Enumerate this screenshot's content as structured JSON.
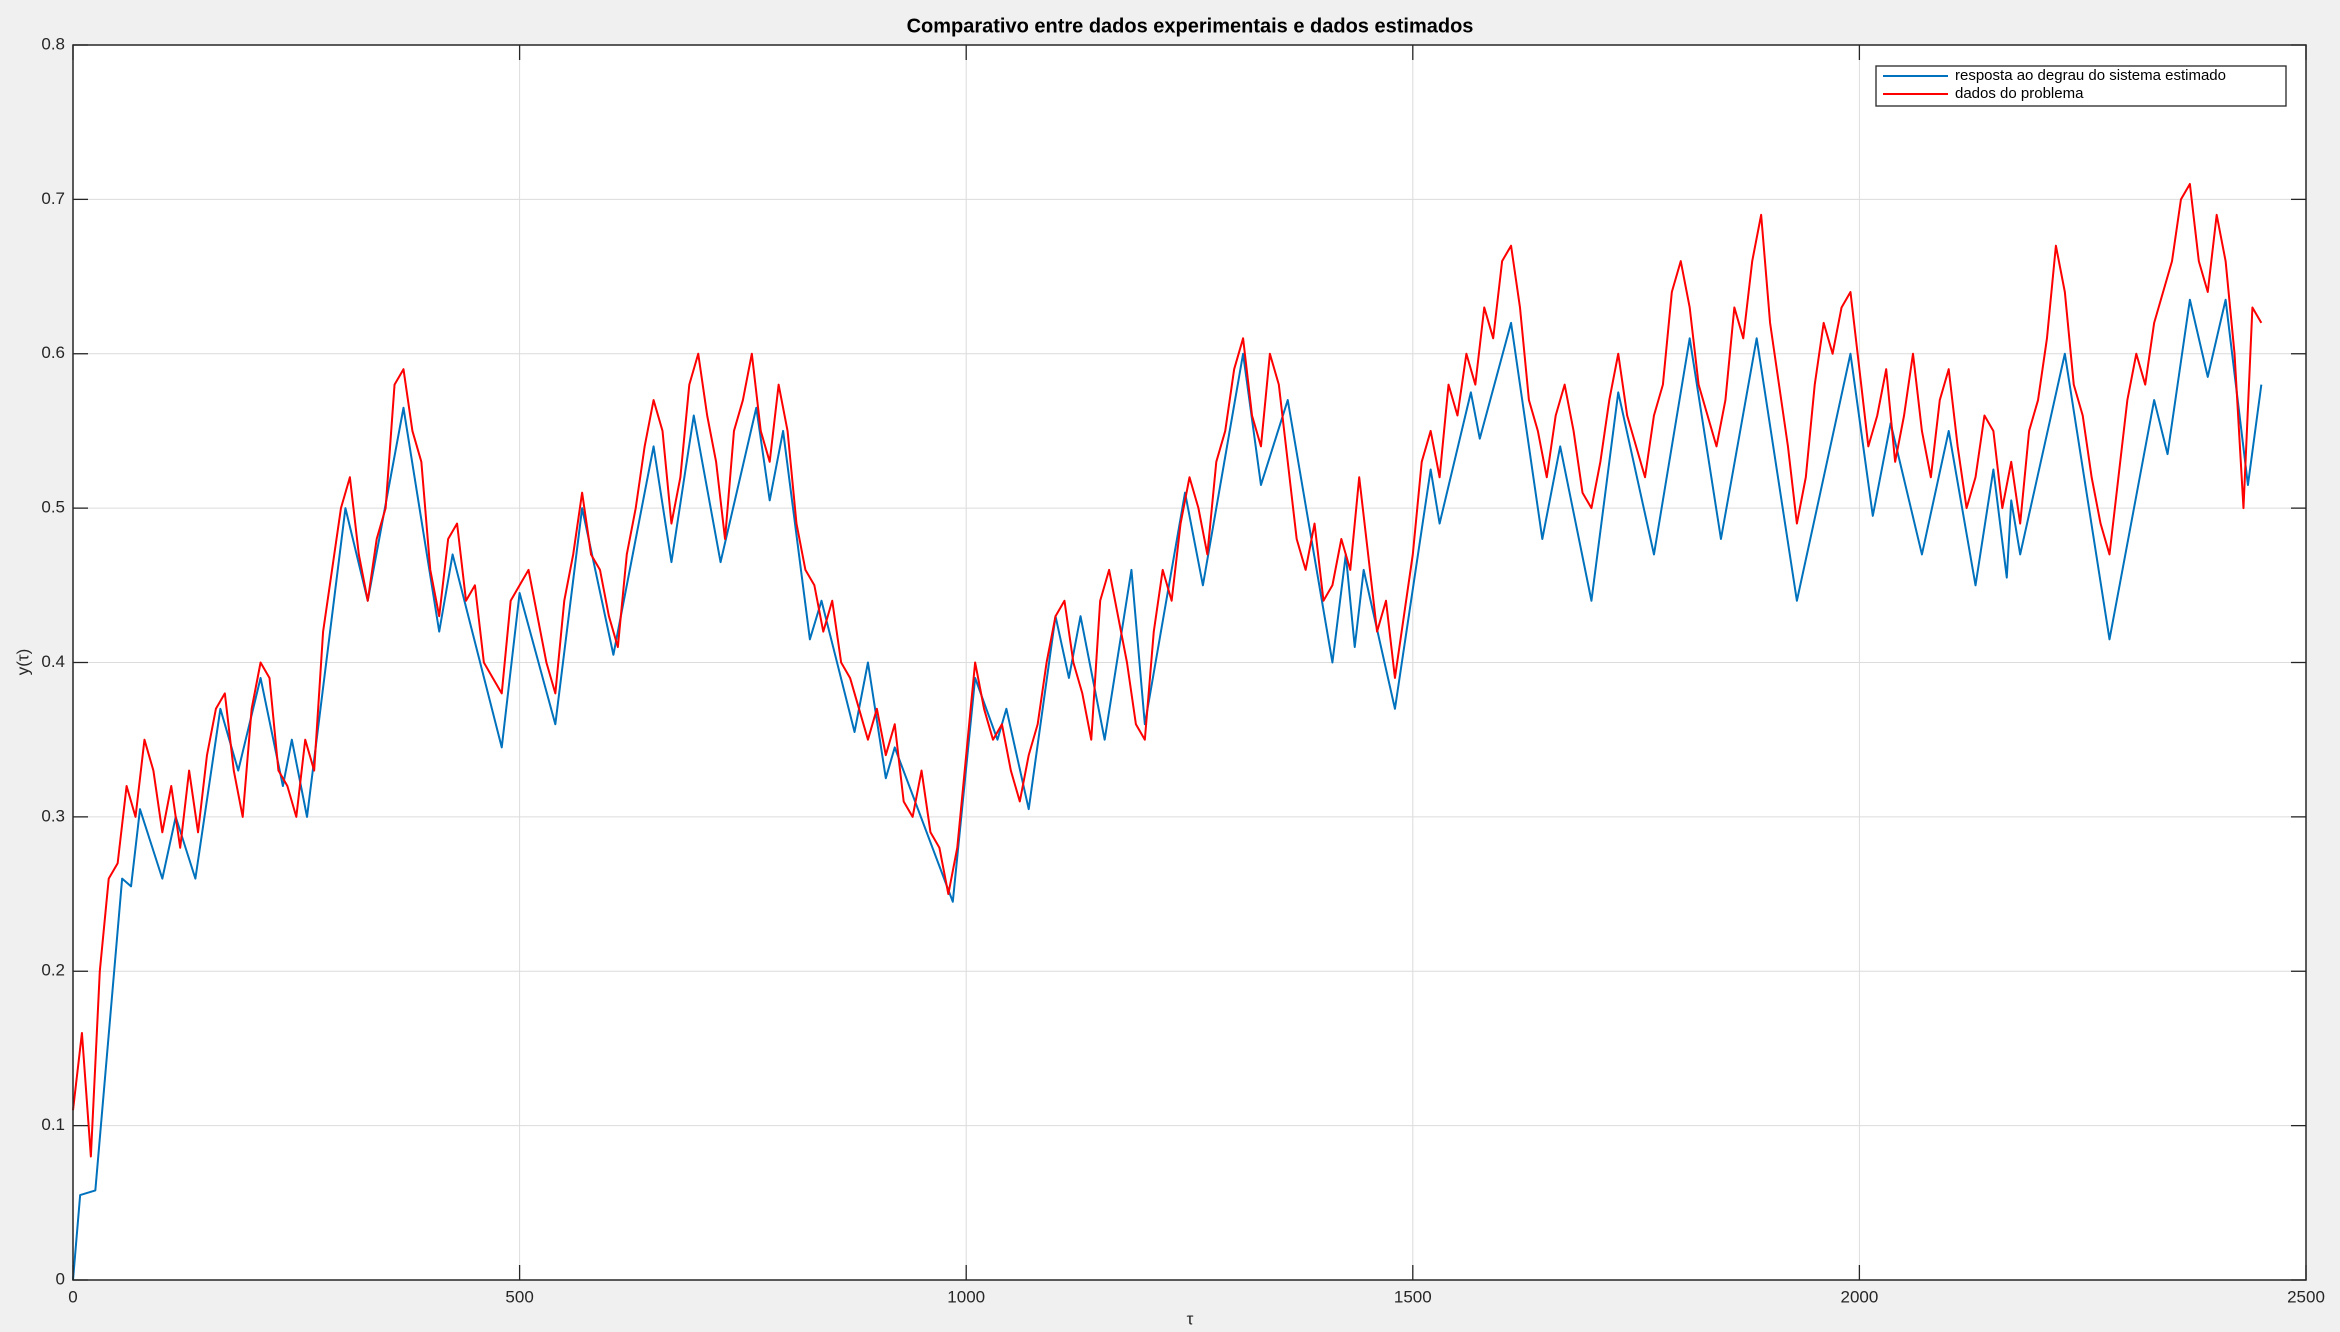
{
  "chart_data": {
    "type": "line",
    "title": "Comparativo entre dados experimentais e dados estimados",
    "xlabel": "τ",
    "ylabel": "y(τ)",
    "xlim": [
      0,
      2500
    ],
    "xticks": [
      0,
      500,
      1000,
      1500,
      2000,
      2500
    ],
    "ylim": [
      0,
      0.8
    ],
    "yticks": [
      0,
      0.1,
      0.2,
      0.3,
      0.4,
      0.5,
      0.6,
      0.7,
      0.8
    ],
    "grid": true,
    "legend": "upper right",
    "series": [
      {
        "name": "resposta ao degrau do sistema estimado",
        "color": "#0072bd",
        "x": [
          0,
          8,
          25,
          55,
          65,
          75,
          100,
          115,
          137,
          165,
          185,
          210,
          235,
          245,
          262,
          305,
          330,
          370,
          410,
          425,
          480,
          500,
          540,
          570,
          605,
          650,
          670,
          695,
          725,
          765,
          780,
          795,
          825,
          838,
          875,
          890,
          910,
          920,
          985,
          1010,
          1035,
          1045,
          1070,
          1100,
          1115,
          1128,
          1155,
          1185,
          1200,
          1245,
          1265,
          1310,
          1330,
          1360,
          1410,
          1425,
          1435,
          1445,
          1480,
          1520,
          1530,
          1565,
          1575,
          1610,
          1645,
          1665,
          1700,
          1730,
          1770,
          1810,
          1845,
          1885,
          1930,
          1990,
          2015,
          2035,
          2070,
          2100,
          2130,
          2150,
          2165,
          2170,
          2180,
          2230,
          2280,
          2330,
          2345,
          2370,
          2390,
          2410,
          2435,
          2450
        ],
        "values": [
          0,
          0.055,
          0.058,
          0.26,
          0.255,
          0.305,
          0.26,
          0.3,
          0.26,
          0.37,
          0.33,
          0.39,
          0.32,
          0.35,
          0.3,
          0.5,
          0.44,
          0.565,
          0.42,
          0.47,
          0.345,
          0.445,
          0.36,
          0.5,
          0.405,
          0.54,
          0.465,
          0.56,
          0.465,
          0.565,
          0.505,
          0.55,
          0.415,
          0.44,
          0.355,
          0.4,
          0.325,
          0.345,
          0.245,
          0.39,
          0.35,
          0.37,
          0.305,
          0.43,
          0.39,
          0.43,
          0.35,
          0.46,
          0.36,
          0.51,
          0.45,
          0.6,
          0.515,
          0.57,
          0.4,
          0.47,
          0.41,
          0.46,
          0.37,
          0.525,
          0.49,
          0.575,
          0.545,
          0.62,
          0.48,
          0.54,
          0.44,
          0.575,
          0.47,
          0.61,
          0.48,
          0.61,
          0.44,
          0.6,
          0.495,
          0.555,
          0.47,
          0.55,
          0.45,
          0.525,
          0.455,
          0.505,
          0.47,
          0.6,
          0.415,
          0.57,
          0.535,
          0.635,
          0.585,
          0.635,
          0.515,
          0.58
        ]
      },
      {
        "name": "dados do problema",
        "color": "#ff0000",
        "x": [
          0,
          10,
          20,
          30,
          40,
          50,
          60,
          70,
          80,
          90,
          100,
          110,
          120,
          130,
          140,
          150,
          160,
          170,
          180,
          190,
          200,
          210,
          220,
          230,
          240,
          250,
          260,
          270,
          280,
          290,
          300,
          310,
          320,
          330,
          340,
          350,
          360,
          370,
          380,
          390,
          400,
          410,
          420,
          430,
          440,
          450,
          460,
          470,
          480,
          490,
          500,
          510,
          520,
          530,
          540,
          550,
          560,
          570,
          580,
          590,
          600,
          610,
          620,
          630,
          640,
          650,
          660,
          670,
          680,
          690,
          700,
          710,
          720,
          730,
          740,
          750,
          760,
          770,
          780,
          790,
          800,
          810,
          820,
          830,
          840,
          850,
          860,
          870,
          880,
          890,
          900,
          910,
          920,
          930,
          940,
          950,
          960,
          970,
          980,
          990,
          1000,
          1010,
          1020,
          1030,
          1040,
          1050,
          1060,
          1070,
          1080,
          1090,
          1100,
          1110,
          1120,
          1130,
          1140,
          1150,
          1160,
          1170,
          1180,
          1190,
          1200,
          1210,
          1220,
          1230,
          1240,
          1250,
          1260,
          1270,
          1280,
          1290,
          1300,
          1310,
          1320,
          1330,
          1340,
          1350,
          1360,
          1370,
          1380,
          1390,
          1400,
          1410,
          1420,
          1430,
          1440,
          1450,
          1460,
          1470,
          1480,
          1490,
          1500,
          1510,
          1520,
          1530,
          1540,
          1550,
          1560,
          1570,
          1580,
          1590,
          1600,
          1610,
          1620,
          1630,
          1640,
          1650,
          1660,
          1670,
          1680,
          1690,
          1700,
          1710,
          1720,
          1730,
          1740,
          1750,
          1760,
          1770,
          1780,
          1790,
          1800,
          1810,
          1820,
          1830,
          1840,
          1850,
          1860,
          1870,
          1880,
          1890,
          1900,
          1910,
          1920,
          1930,
          1940,
          1950,
          1960,
          1970,
          1980,
          1990,
          2000,
          2010,
          2020,
          2030,
          2040,
          2050,
          2060,
          2070,
          2080,
          2090,
          2100,
          2110,
          2120,
          2130,
          2140,
          2150,
          2160,
          2170,
          2180,
          2190,
          2200,
          2210,
          2220,
          2230,
          2240,
          2250,
          2260,
          2270,
          2280,
          2290,
          2300,
          2310,
          2320,
          2330,
          2340,
          2350,
          2360,
          2370,
          2380,
          2390,
          2400,
          2410,
          2420,
          2430,
          2440,
          2450
        ],
        "values": [
          0.11,
          0.16,
          0.08,
          0.2,
          0.26,
          0.27,
          0.32,
          0.3,
          0.35,
          0.33,
          0.29,
          0.32,
          0.28,
          0.33,
          0.29,
          0.34,
          0.37,
          0.38,
          0.33,
          0.3,
          0.37,
          0.4,
          0.39,
          0.33,
          0.32,
          0.3,
          0.35,
          0.33,
          0.42,
          0.46,
          0.5,
          0.52,
          0.47,
          0.44,
          0.48,
          0.5,
          0.58,
          0.59,
          0.55,
          0.53,
          0.46,
          0.43,
          0.48,
          0.49,
          0.44,
          0.45,
          0.4,
          0.39,
          0.38,
          0.44,
          0.45,
          0.46,
          0.43,
          0.4,
          0.38,
          0.44,
          0.47,
          0.51,
          0.47,
          0.46,
          0.43,
          0.41,
          0.47,
          0.5,
          0.54,
          0.57,
          0.55,
          0.49,
          0.52,
          0.58,
          0.6,
          0.56,
          0.53,
          0.48,
          0.55,
          0.57,
          0.6,
          0.55,
          0.53,
          0.58,
          0.55,
          0.49,
          0.46,
          0.45,
          0.42,
          0.44,
          0.4,
          0.39,
          0.37,
          0.35,
          0.37,
          0.34,
          0.36,
          0.31,
          0.3,
          0.33,
          0.29,
          0.28,
          0.25,
          0.28,
          0.34,
          0.4,
          0.37,
          0.35,
          0.36,
          0.33,
          0.31,
          0.34,
          0.36,
          0.4,
          0.43,
          0.44,
          0.4,
          0.38,
          0.35,
          0.44,
          0.46,
          0.43,
          0.4,
          0.36,
          0.35,
          0.42,
          0.46,
          0.44,
          0.49,
          0.52,
          0.5,
          0.47,
          0.53,
          0.55,
          0.59,
          0.61,
          0.56,
          0.54,
          0.6,
          0.58,
          0.53,
          0.48,
          0.46,
          0.49,
          0.44,
          0.45,
          0.48,
          0.46,
          0.52,
          0.47,
          0.42,
          0.44,
          0.39,
          0.43,
          0.47,
          0.53,
          0.55,
          0.52,
          0.58,
          0.56,
          0.6,
          0.58,
          0.63,
          0.61,
          0.66,
          0.67,
          0.63,
          0.57,
          0.55,
          0.52,
          0.56,
          0.58,
          0.55,
          0.51,
          0.5,
          0.53,
          0.57,
          0.6,
          0.56,
          0.54,
          0.52,
          0.56,
          0.58,
          0.64,
          0.66,
          0.63,
          0.58,
          0.56,
          0.54,
          0.57,
          0.63,
          0.61,
          0.66,
          0.69,
          0.62,
          0.58,
          0.54,
          0.49,
          0.52,
          0.58,
          0.62,
          0.6,
          0.63,
          0.64,
          0.59,
          0.54,
          0.56,
          0.59,
          0.53,
          0.56,
          0.6,
          0.55,
          0.52,
          0.57,
          0.59,
          0.54,
          0.5,
          0.52,
          0.56,
          0.55,
          0.5,
          0.53,
          0.49,
          0.55,
          0.57,
          0.61,
          0.67,
          0.64,
          0.58,
          0.56,
          0.52,
          0.49,
          0.47,
          0.52,
          0.57,
          0.6,
          0.58,
          0.62,
          0.64,
          0.66,
          0.7,
          0.71,
          0.66,
          0.64,
          0.69,
          0.66,
          0.6,
          0.5,
          0.63,
          0.62
        ]
      }
    ]
  }
}
